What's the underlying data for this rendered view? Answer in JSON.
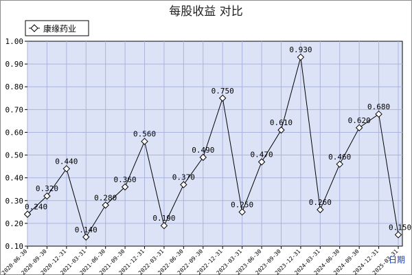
{
  "chart_data": {
    "type": "line",
    "title": "每股收益  对比",
    "xlabel": "日期",
    "ylabel": "",
    "ylim": [
      0.1,
      1.0
    ],
    "yticks": [
      "1.00",
      "0.90",
      "0.80",
      "0.70",
      "0.60",
      "0.50",
      "0.40",
      "0.30",
      "0.20",
      "0.10"
    ],
    "grid": true,
    "legend_position": "top-left",
    "categories": [
      "2020-06-30",
      "2020-09-30",
      "2020-12-31",
      "2021-03-31",
      "2021-06-30",
      "2021-09-30",
      "2021-12-31",
      "2022-03-31",
      "2022-06-30",
      "2022-09-30",
      "2022-12-31",
      "2023-03-31",
      "2023-06-30",
      "2023-09-30",
      "2023-12-31",
      "2024-03-31",
      "2024-06-30",
      "2024-09-30",
      "2024-12-31",
      "2025-03-31"
    ],
    "series": [
      {
        "name": "康缘药业",
        "values": [
          0.24,
          0.32,
          0.44,
          0.14,
          0.28,
          0.36,
          0.56,
          0.19,
          0.37,
          0.49,
          0.75,
          0.25,
          0.47,
          0.61,
          0.93,
          0.26,
          0.46,
          0.62,
          0.68,
          0.15
        ],
        "labels": [
          "0.240",
          "0.320",
          "0.440",
          "0.140",
          "0.280",
          "0.360",
          "0.560",
          "0.190",
          "0.370",
          "0.490",
          "0.750",
          "0.250",
          "0.470",
          "0.610",
          "0.930",
          "0.260",
          "0.460",
          "0.620",
          "0.680",
          "0.150"
        ]
      }
    ],
    "colors": {
      "plot_bg": "#dde3f7",
      "grid": "#aab4dc",
      "line": "#000000",
      "marker_fill": "#ffffff",
      "xunit": "#1a3fb3"
    }
  }
}
